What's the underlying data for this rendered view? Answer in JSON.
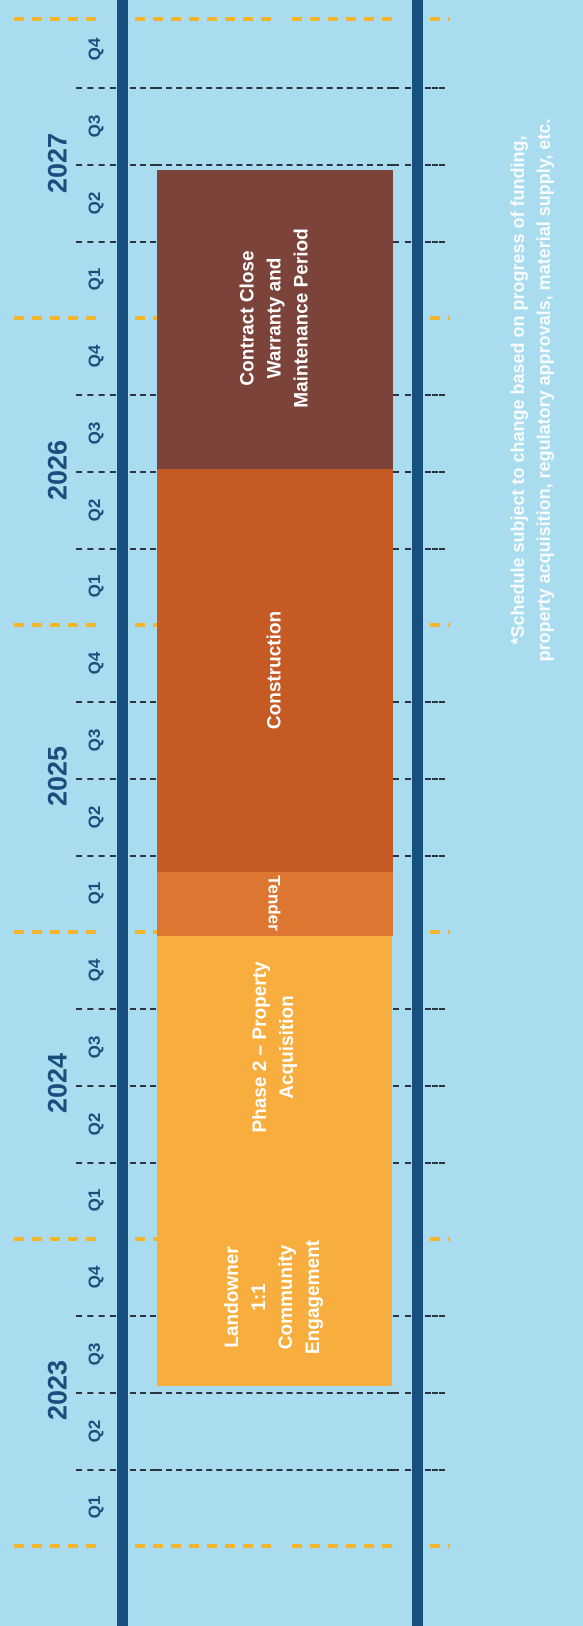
{
  "colors": {
    "background": "#a9dcef",
    "rail": "#17507f",
    "year_tick": "#f3b62b",
    "label_text": "#1b4e7c",
    "phase_engagement_acquisition": "#f8ae3e",
    "phase_tender": "#dd7630",
    "phase_construction": "#c55a25",
    "phase_close": "#7b4339"
  },
  "timeline": {
    "years": [
      {
        "label": "2023",
        "quarters": [
          "Q1",
          "Q2",
          "Q3",
          "Q4"
        ]
      },
      {
        "label": "2024",
        "quarters": [
          "Q1",
          "Q2",
          "Q3",
          "Q4"
        ]
      },
      {
        "label": "2025",
        "quarters": [
          "Q1",
          "Q2",
          "Q3",
          "Q4"
        ]
      },
      {
        "label": "2026",
        "quarters": [
          "Q1",
          "Q2",
          "Q3",
          "Q4"
        ]
      },
      {
        "label": "2027",
        "quarters": [
          "Q1",
          "Q2",
          "Q3",
          "Q4"
        ]
      }
    ]
  },
  "phases": {
    "engagement": {
      "lines": [
        "Landowner",
        "1:1",
        "Community",
        "Engagement"
      ],
      "start": "2023 Q3",
      "end": "2024 Q4"
    },
    "acquisition": {
      "lines": [
        "Phase 2 – Property",
        "Acquisition"
      ],
      "start": "2023 Q3",
      "end": "2024 Q4"
    },
    "tender": {
      "lines": [
        "Tender"
      ],
      "start": "2025 Q1",
      "end": "2025 Q1"
    },
    "construction": {
      "lines": [
        "Construction"
      ],
      "start": "2025 Q2",
      "end": "2026 Q2"
    },
    "close": {
      "lines": [
        "Contract Close",
        "Warranty and",
        "Maintenance Period"
      ],
      "start": "2026 Q3",
      "end": "2027 Q2"
    }
  },
  "note": {
    "lines": [
      "*Schedule subject to change based on progress of funding,",
      "property acquisition, regulatory approvals, material supply, etc."
    ]
  }
}
